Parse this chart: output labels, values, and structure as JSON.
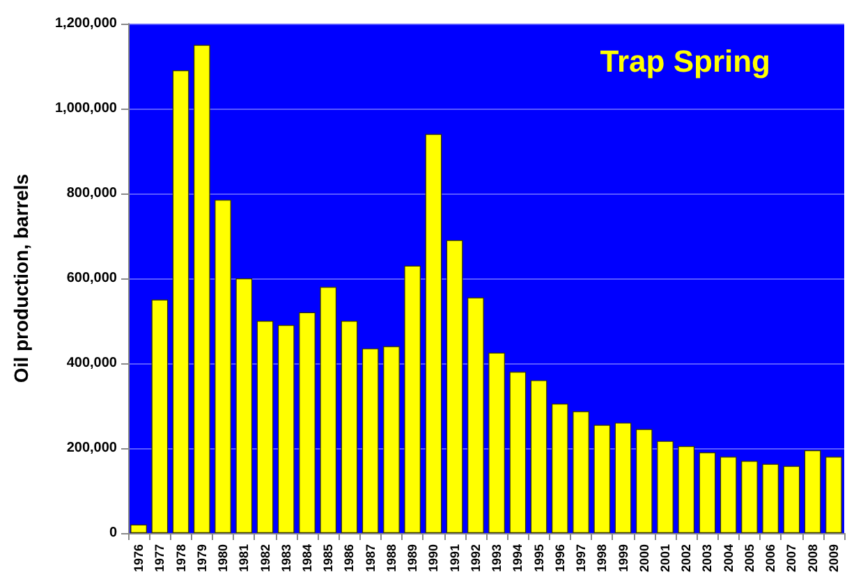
{
  "chart_data": {
    "type": "bar",
    "title": "Trap Spring",
    "ylabel": "Oil production, barrels",
    "categories": [
      "1976",
      "1977",
      "1978",
      "1979",
      "1980",
      "1981",
      "1982",
      "1983",
      "1984",
      "1985",
      "1986",
      "1987",
      "1988",
      "1989",
      "1990",
      "1991",
      "1992",
      "1993",
      "1994",
      "1995",
      "1996",
      "1997",
      "1998",
      "1999",
      "2000",
      "2001",
      "2002",
      "2003",
      "2004",
      "2005",
      "2006",
      "2007",
      "2008",
      "2009"
    ],
    "values": [
      20000,
      550000,
      1090000,
      1150000,
      785000,
      600000,
      500000,
      490000,
      520000,
      580000,
      500000,
      435000,
      440000,
      630000,
      940000,
      690000,
      555000,
      425000,
      380000,
      360000,
      305000,
      287000,
      255000,
      260000,
      245000,
      217000,
      205000,
      190000,
      180000,
      170000,
      163000,
      158000,
      195000,
      180000
    ],
    "color": "#ffff00",
    "ylim": [
      0,
      1200000
    ],
    "yticks": [
      0,
      {
        "value": 200000,
        "label": "200,000"
      },
      {
        "value": 400000,
        "label": "400,000"
      },
      {
        "value": 600000,
        "label": "600,000"
      },
      {
        "value": 800000,
        "label": "800,000"
      },
      {
        "value": 1000000,
        "label": "1,000,000"
      },
      {
        "value": 1200000,
        "label": "1,200,000"
      }
    ],
    "grid": "y"
  }
}
